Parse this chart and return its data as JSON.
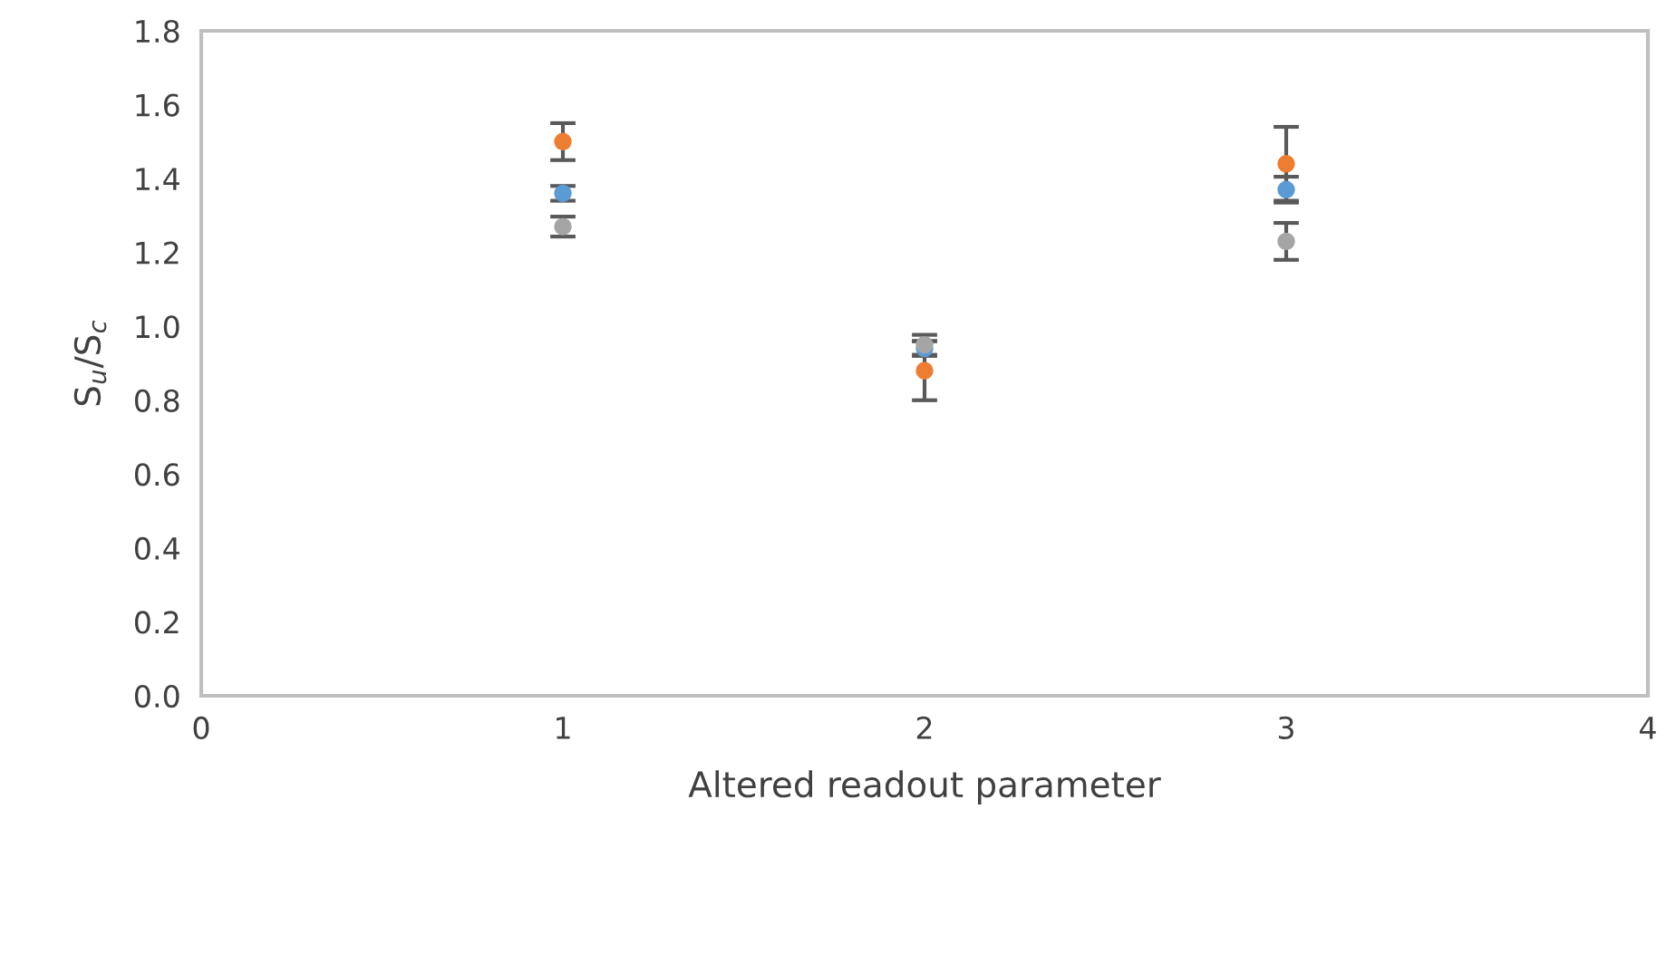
{
  "chart_data": {
    "type": "scatter",
    "xlabel": "Altered readout parameter",
    "ylabel": "S$_{u}$/S$_{c}$",
    "xlim": [
      0,
      4
    ],
    "xticks": [
      0,
      1,
      2,
      3,
      4
    ],
    "ylim": [
      0,
      1.8
    ],
    "yticks": [
      {
        "value": 0,
        "label": "0.0"
      },
      {
        "value": 0.2,
        "label": "0.2"
      },
      {
        "value": 0.4,
        "label": "0.4"
      },
      {
        "value": 0.6,
        "label": "0.6"
      },
      {
        "value": 0.8,
        "label": "0.8"
      },
      {
        "value": 1.0,
        "label": "1.0"
      },
      {
        "value": 1.2,
        "label": "1.2"
      },
      {
        "value": 1.4,
        "label": "1.4"
      },
      {
        "value": 1.6,
        "label": "1.6"
      },
      {
        "value": 1.8,
        "label": "1.8"
      }
    ],
    "grid": false,
    "marker": "circle",
    "series": [
      {
        "color": "#5b9bd5",
        "x": [
          1,
          2,
          3
        ],
        "values": [
          1.36,
          0.94,
          1.37
        ],
        "errors": [
          0.02,
          0.02,
          0.035
        ]
      },
      {
        "color": "#ed7d31",
        "x": [
          1,
          2,
          3
        ],
        "values": [
          1.5,
          0.88,
          1.44
        ],
        "errors": [
          0.05,
          0.08,
          0.1
        ]
      },
      {
        "color": "#a5a5a5",
        "x": [
          1,
          2,
          3
        ],
        "values": [
          1.27,
          0.95,
          1.23
        ],
        "errors": [
          0.027,
          0.027,
          0.05
        ]
      }
    ]
  }
}
